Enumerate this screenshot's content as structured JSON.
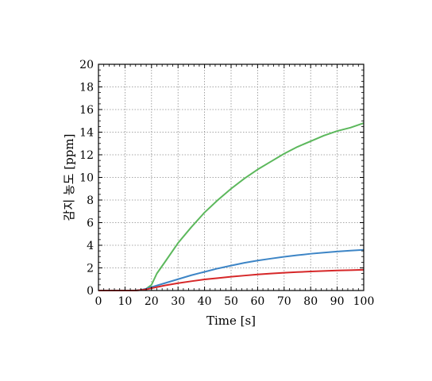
{
  "chart_data": {
    "type": "line",
    "xlabel": "Time [s]",
    "ylabel": "감지 농도 [ppm]",
    "xlim": [
      0,
      100
    ],
    "ylim": [
      0,
      20
    ],
    "xticks": [
      0,
      10,
      20,
      30,
      40,
      50,
      60,
      70,
      80,
      90,
      100
    ],
    "yticks": [
      0,
      2,
      4,
      6,
      8,
      10,
      12,
      14,
      16,
      18,
      20
    ],
    "grid": true,
    "series": [
      {
        "color": "#5cb85c",
        "x": [
          0,
          14,
          16,
          18,
          20,
          22,
          25,
          30,
          35,
          40,
          45,
          50,
          55,
          60,
          65,
          70,
          75,
          80,
          85,
          90,
          95,
          100
        ],
        "y": [
          0,
          0,
          0.05,
          0.15,
          0.5,
          1.5,
          2.5,
          4.2,
          5.6,
          6.9,
          8.0,
          9.0,
          9.9,
          10.7,
          11.4,
          12.1,
          12.7,
          13.2,
          13.7,
          14.1,
          14.4,
          14.8
        ]
      },
      {
        "color": "#3d85c6",
        "x": [
          0,
          14,
          16,
          18,
          20,
          25,
          30,
          35,
          40,
          45,
          50,
          55,
          60,
          65,
          70,
          75,
          80,
          85,
          90,
          95,
          100
        ],
        "y": [
          0,
          0,
          0.05,
          0.15,
          0.3,
          0.65,
          1.0,
          1.35,
          1.65,
          1.95,
          2.2,
          2.45,
          2.65,
          2.82,
          2.98,
          3.12,
          3.25,
          3.35,
          3.45,
          3.53,
          3.6
        ]
      },
      {
        "color": "#d62728",
        "x": [
          0,
          14,
          16,
          18,
          20,
          25,
          30,
          35,
          40,
          45,
          50,
          55,
          60,
          65,
          70,
          75,
          80,
          85,
          90,
          95,
          100
        ],
        "y": [
          0,
          0,
          0.04,
          0.1,
          0.2,
          0.45,
          0.65,
          0.82,
          0.98,
          1.1,
          1.22,
          1.32,
          1.42,
          1.5,
          1.57,
          1.63,
          1.68,
          1.73,
          1.77,
          1.8,
          1.83
        ]
      }
    ]
  }
}
